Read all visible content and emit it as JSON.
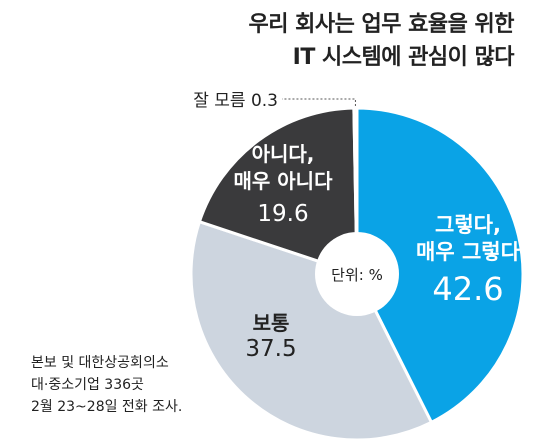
{
  "title_line1": "우리 회사는 업무 효율을 위한",
  "title_line2": "IT 시스템에 관심이 많다",
  "unit_label": "단위: %",
  "source_lines": [
    "본보 및 대한상공회의소",
    "대·중소기업 336곳",
    "2월 23~28일 전화 조사."
  ],
  "chart_data": {
    "type": "pie",
    "title": "우리 회사는 업무 효율을 위한 IT 시스템에 관심이 많다",
    "unit": "%",
    "slices": [
      {
        "label_lines": [
          "그렇다,",
          "매우 그렇다"
        ],
        "value": 42.6,
        "value_text": "42.6",
        "color": "#0aa3e6",
        "label_color": "#ffffff"
      },
      {
        "label_lines": [
          "보통"
        ],
        "value": 37.5,
        "value_text": "37.5",
        "color": "#cdd5df",
        "label_color": "#222222"
      },
      {
        "label_lines": [
          "아니다,",
          "매우 아니다"
        ],
        "value": 19.6,
        "value_text": "19.6",
        "color": "#3a3a3c",
        "label_color": "#ffffff"
      },
      {
        "label_lines": [
          "잘 모름"
        ],
        "value": 0.3,
        "value_text": "0.3",
        "color": "#cfcfcf",
        "label_color": "#222222"
      }
    ]
  }
}
